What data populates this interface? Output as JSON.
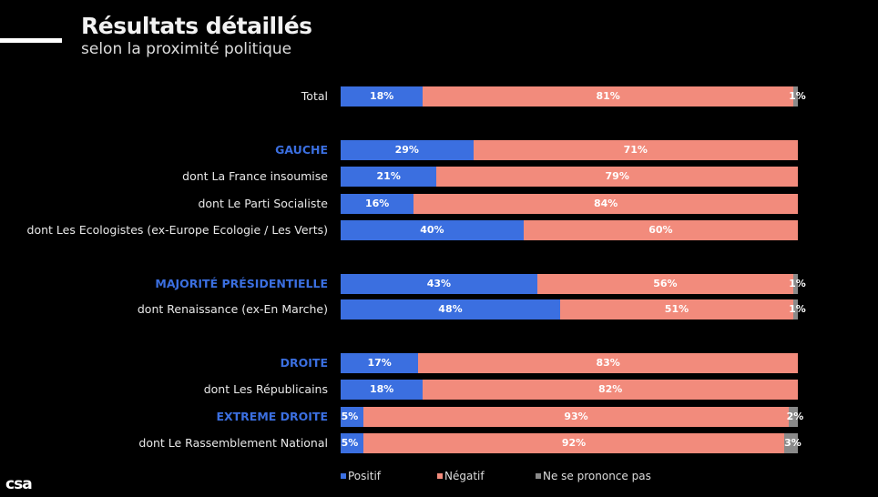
{
  "header": {
    "title": "Résultats détaillés",
    "subtitle": "selon la proximité politique"
  },
  "logo": "csa",
  "chart_data": {
    "type": "bar",
    "orientation": "horizontal",
    "stacked": true,
    "title": "Résultats détaillés",
    "subtitle": "selon la proximité politique",
    "xlim": [
      0,
      100
    ],
    "legend_position": "bottom",
    "series": [
      {
        "name": "Positif",
        "color": "#3b6fe0"
      },
      {
        "name": "Négatif",
        "color": "#f28b7c"
      },
      {
        "name": "Ne se prononce pas",
        "color": "#8a8a8a"
      }
    ],
    "rows": [
      {
        "label": "Total",
        "group": false,
        "values": [
          18,
          81,
          1
        ]
      },
      {
        "label": "GAUCHE",
        "group": true,
        "values": [
          29,
          71,
          0
        ]
      },
      {
        "label": "dont La France insoumise",
        "group": false,
        "values": [
          21,
          79,
          0
        ]
      },
      {
        "label": "dont Le Parti Socialiste",
        "group": false,
        "values": [
          16,
          84,
          0
        ]
      },
      {
        "label": "dont Les Ecologistes (ex-Europe Ecologie / Les Verts)",
        "group": false,
        "values": [
          40,
          60,
          0
        ]
      },
      {
        "label": "MAJORITÉ PRÉSIDENTIELLE",
        "group": true,
        "values": [
          43,
          56,
          1
        ]
      },
      {
        "label": "dont Renaissance (ex-En Marche)",
        "group": false,
        "values": [
          48,
          51,
          1
        ]
      },
      {
        "label": "DROITE",
        "group": true,
        "values": [
          17,
          83,
          0
        ]
      },
      {
        "label": "dont Les Républicains",
        "group": false,
        "values": [
          18,
          82,
          0
        ]
      },
      {
        "label": "EXTREME DROITE",
        "group": true,
        "values": [
          5,
          93,
          2
        ]
      },
      {
        "label": "dont Le Rassemblement National",
        "group": false,
        "values": [
          5,
          92,
          3
        ]
      }
    ]
  }
}
